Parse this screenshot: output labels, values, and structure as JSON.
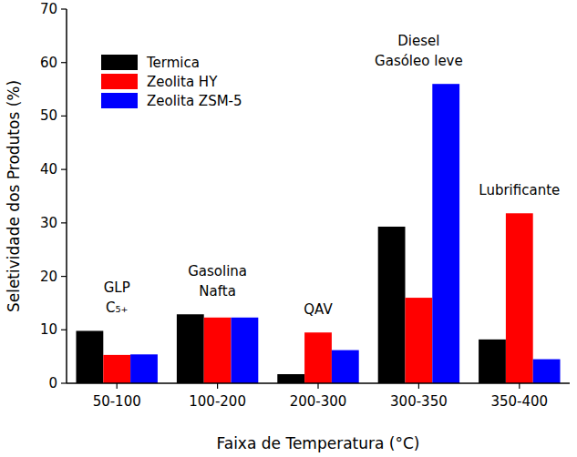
{
  "chart_data": {
    "type": "bar",
    "x_label": "Faixa de Temperatura (°C)",
    "y_label": "Seletividade dos Produtos (%)",
    "categories": [
      "50-100",
      "100-200",
      "200-300",
      "300-350",
      "350-400"
    ],
    "series": [
      {
        "name": "Termica",
        "color": "#000000",
        "values": [
          9.8,
          12.9,
          1.7,
          29.3,
          8.2
        ]
      },
      {
        "name": "Zeolita HY",
        "color": "#ff0000",
        "values": [
          5.3,
          12.3,
          9.5,
          16.0,
          31.8
        ]
      },
      {
        "name": "Zeolita ZSM-5",
        "color": "#0000ff",
        "values": [
          5.4,
          12.3,
          6.2,
          56.0,
          4.5
        ]
      }
    ],
    "annotations": [
      [
        "GLP",
        "C₅₊"
      ],
      [
        "Gasolina",
        "Nafta"
      ],
      [
        "QAV"
      ],
      [
        "Diesel",
        "Gasóleo leve"
      ],
      [
        "Lubrificante"
      ]
    ],
    "ylim": [
      0,
      70
    ],
    "yticks": [
      0,
      10,
      20,
      30,
      40,
      50,
      60,
      70
    ],
    "grid": false,
    "legend": "upper left"
  }
}
